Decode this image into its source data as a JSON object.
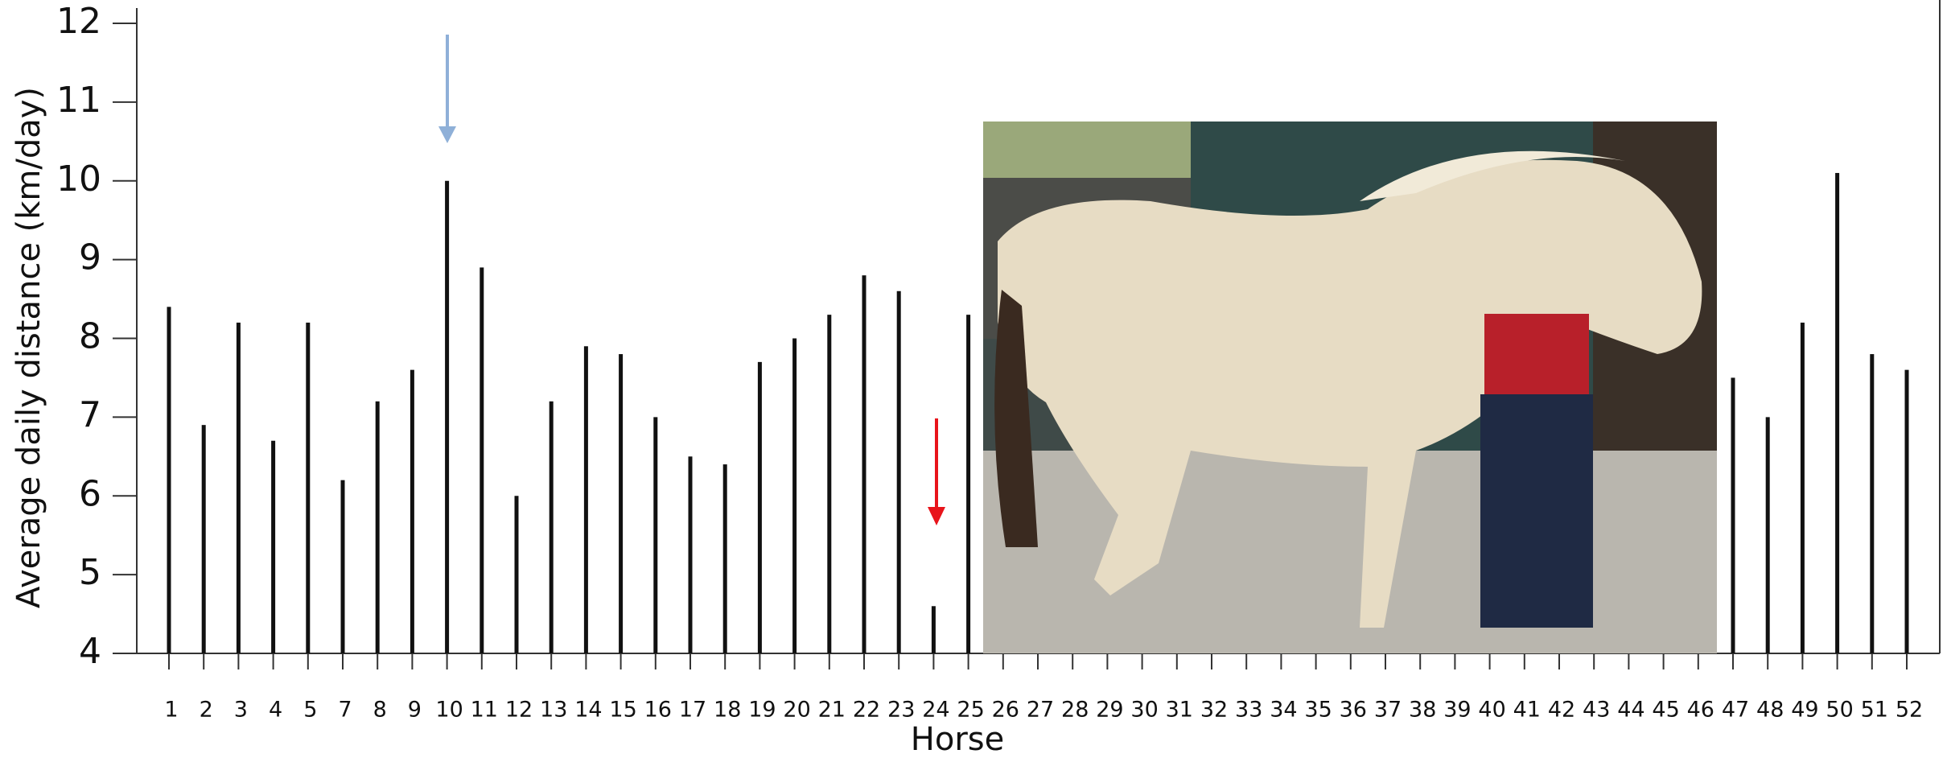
{
  "chart_data": {
    "type": "bar",
    "y_label": "Average daily distance (km/day)",
    "x_label": "Horse",
    "categories": [
      "1",
      "2",
      "3",
      "4",
      "5",
      "7",
      "8",
      "9",
      "10",
      "11",
      "12",
      "13",
      "14",
      "15",
      "16",
      "17",
      "18",
      "19",
      "20",
      "21",
      "22",
      "23",
      "24",
      "25",
      "26",
      "27",
      "28",
      "29",
      "30",
      "31",
      "32",
      "33",
      "34",
      "35",
      "36",
      "37",
      "38",
      "39",
      "40",
      "41",
      "42",
      "43",
      "44",
      "45",
      "46",
      "47",
      "48",
      "49",
      "50",
      "51",
      "52"
    ],
    "values": [
      8.4,
      6.9,
      8.2,
      6.7,
      8.2,
      6.2,
      7.2,
      7.6,
      10.0,
      8.9,
      6.0,
      7.2,
      7.9,
      7.8,
      7.0,
      6.5,
      6.4,
      7.7,
      8.0,
      8.3,
      8.8,
      8.6,
      4.6,
      8.3,
      null,
      null,
      null,
      null,
      null,
      null,
      null,
      null,
      null,
      null,
      null,
      null,
      null,
      null,
      null,
      null,
      null,
      null,
      null,
      null,
      null,
      7.5,
      7.0,
      8.2,
      10.1,
      7.8,
      7.6
    ],
    "color": "#111111",
    "ylim": [
      4,
      12
    ],
    "yticks": [
      4,
      5,
      6,
      7,
      8,
      9,
      10,
      11,
      12
    ],
    "grid": false
  }
}
